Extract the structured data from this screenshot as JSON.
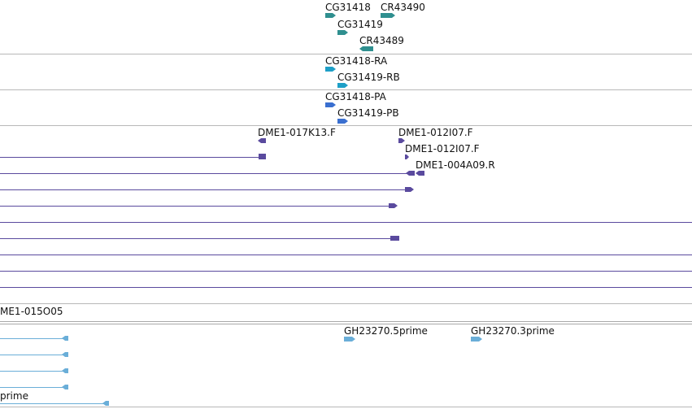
{
  "tracks": {
    "gene_models": {
      "labels": [
        "CG31418",
        "CR43490",
        "CG31419",
        "CR43489"
      ],
      "color": "#2f8f8f"
    },
    "transcripts_ra": {
      "labels": [
        "CG31418-RA",
        "CG31419-RB"
      ],
      "color": "#1e9fc7"
    },
    "proteins": {
      "labels": [
        "CG31418-PA",
        "CG31419-PB"
      ],
      "color": "#3a6fd0"
    },
    "bac_ends": {
      "labels": [
        "DME1-017K13.F",
        "DME1-012I07.F",
        "DME1-012I07.F",
        "DME1-004A09.R"
      ],
      "color": "#5a4a9e"
    },
    "clone_track": {
      "label": "ME1-015O05"
    },
    "est": {
      "labels": [
        "GH23270.5prime",
        "GH23270.3prime",
        "prime"
      ],
      "color": "#6aaed8"
    }
  }
}
